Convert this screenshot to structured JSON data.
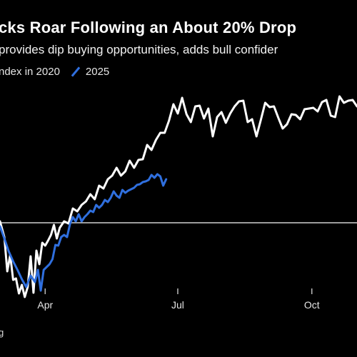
{
  "title": "cks Roar Following an About 20% Drop",
  "subtitle": "provides dip buying opportunities, adds bull confider",
  "legend": [
    {
      "label": "ndex in 2020",
      "color": "#ffffff"
    },
    {
      "label": "2025",
      "color": "#2f6fde"
    }
  ],
  "source": "g",
  "chart_data": {
    "type": "line",
    "x_ticks": [
      "Apr",
      "Jul",
      "Oct"
    ],
    "x_tick_days": [
      91,
      182,
      274
    ],
    "xlim": [
      60,
      305
    ],
    "ylim": [
      89,
      120
    ],
    "baseline_value": 100,
    "series": [
      {
        "name": "ndex in 2020",
        "color": "#ffffff",
        "x": [
          60,
          63,
          65,
          67,
          69,
          71,
          73,
          75,
          77,
          79,
          81,
          83,
          85,
          87,
          89,
          91,
          93,
          95,
          97,
          99,
          101,
          104,
          107,
          110,
          113,
          116,
          119,
          122,
          125,
          128,
          131,
          134,
          137,
          140,
          143,
          146,
          149,
          152,
          155,
          158,
          161,
          164,
          167,
          170,
          173,
          176,
          179,
          182,
          185,
          188,
          191,
          194,
          197,
          200,
          203,
          206,
          209,
          212,
          215,
          218,
          221,
          224,
          227,
          230,
          233,
          236,
          239,
          242,
          245,
          248,
          251,
          254,
          257,
          260,
          263,
          266,
          269,
          272,
          275,
          278,
          281,
          284,
          287,
          290,
          293,
          296,
          299,
          302,
          305
        ],
        "y": [
          100.2,
          98.0,
          93.2,
          95.5,
          92.0,
          92.2,
          90.1,
          91.3,
          89.6,
          91.0,
          95.3,
          90.2,
          96.1,
          94.2,
          97.2,
          96.8,
          97.5,
          98.3,
          99.7,
          97.8,
          99.3,
          100.2,
          99.9,
          102.0,
          101.6,
          102.5,
          103.0,
          104.0,
          103.3,
          105.2,
          104.8,
          106.1,
          106.6,
          107.7,
          106.6,
          107.2,
          108.7,
          107.7,
          108.8,
          108.9,
          110.9,
          110.2,
          111.6,
          112.6,
          112.6,
          114.3,
          116.6,
          115.3,
          117.5,
          115.2,
          114.1,
          116.3,
          116.4,
          114.6,
          116.0,
          112.1,
          114.8,
          115.5,
          114.0,
          115.3,
          116.3,
          117.0,
          117.1,
          114.1,
          114.5,
          112.1,
          114.4,
          116.8,
          116.2,
          116.3,
          114.7,
          113.2,
          113.8,
          115.2,
          115.1,
          114.5,
          115.9,
          116.0,
          116.1,
          115.6,
          116.9,
          117.2,
          115.0,
          114.8,
          117.7,
          116.8,
          117.1,
          117.2,
          116.3
        ]
      },
      {
        "name": "2025",
        "color": "#2f6fde",
        "x": [
          60,
          63,
          66,
          69,
          72,
          75,
          78,
          81,
          84,
          86,
          88,
          90,
          92,
          94,
          96,
          98,
          100,
          102,
          104,
          106,
          108,
          110,
          112,
          114,
          116,
          118,
          120,
          122,
          124,
          126,
          128,
          130,
          132,
          134,
          136,
          138,
          140,
          142,
          144,
          146,
          148,
          150,
          152,
          154,
          156,
          158,
          160,
          162,
          164,
          166,
          168,
          170,
          172,
          174
        ],
        "y": [
          99.5,
          97.8,
          96.0,
          94.6,
          93.4,
          92.1,
          91.0,
          92.6,
          91.7,
          93.4,
          90.5,
          93.4,
          93.8,
          94.2,
          94.9,
          96.9,
          96.8,
          98.0,
          98.3,
          98.0,
          99.8,
          100.8,
          100.2,
          101.2,
          100.2,
          100.8,
          101.2,
          101.7,
          101.5,
          102.5,
          102.1,
          102.5,
          103.2,
          102.9,
          103.5,
          104.4,
          103.8,
          103.5,
          104.6,
          104.2,
          104.5,
          104.7,
          104.9,
          105.3,
          105.4,
          105.7,
          105.8,
          106.0,
          106.7,
          106.3,
          106.8,
          106.5,
          105.2,
          106.1
        ]
      }
    ]
  }
}
